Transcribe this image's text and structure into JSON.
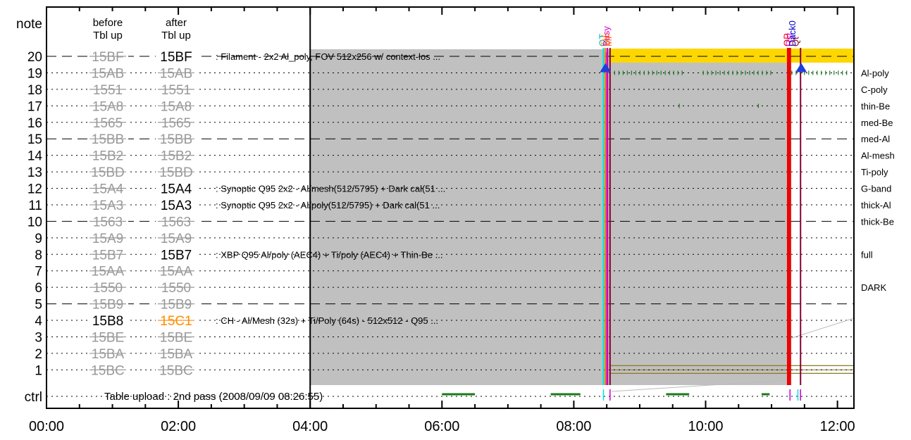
{
  "chart_data": {
    "type": "timeline",
    "header": {
      "note": "note",
      "before": [
        "before",
        "Tbl up"
      ],
      "after": [
        "after",
        "Tbl up"
      ]
    },
    "ctrl_label": "ctrl",
    "ctrl_text": "Table upload : 2nd pass (2008/09/09 08:26:55)",
    "x_ticks": [
      "00:00",
      "02:00",
      "04:00",
      "06:00",
      "08:00",
      "10:00",
      "12:00"
    ],
    "x_range_hours": [
      0,
      12.25
    ],
    "rows": [
      {
        "n": "20",
        "before": "15BF",
        "after": "15BF",
        "after_state": "active",
        "dashed": true,
        "desc": "Filament - 2x2 Al_poly, FOV 512x256 w/ context-los ...",
        "filter": ""
      },
      {
        "n": "19",
        "before": "15AB",
        "after": "15AB",
        "after_state": "gray",
        "dashed": false,
        "desc": "",
        "filter": "Al-poly"
      },
      {
        "n": "18",
        "before": "1551",
        "after": "1551",
        "after_state": "gray",
        "dashed": false,
        "desc": "",
        "filter": "C-poly"
      },
      {
        "n": "17",
        "before": "15A8",
        "after": "15A8",
        "after_state": "gray",
        "dashed": false,
        "desc": "",
        "filter": "thin-Be"
      },
      {
        "n": "16",
        "before": "1565",
        "after": "1565",
        "after_state": "gray",
        "dashed": false,
        "desc": "",
        "filter": "med-Be"
      },
      {
        "n": "15",
        "before": "15BB",
        "after": "15BB",
        "after_state": "gray",
        "dashed": true,
        "desc": "",
        "filter": "med-Al"
      },
      {
        "n": "14",
        "before": "15B2",
        "after": "15B2",
        "after_state": "gray",
        "dashed": false,
        "desc": "",
        "filter": "Al-mesh"
      },
      {
        "n": "13",
        "before": "15BD",
        "after": "15BD",
        "after_state": "gray",
        "dashed": false,
        "desc": "",
        "filter": "Ti-poly"
      },
      {
        "n": "12",
        "before": "15A4",
        "after": "15A4",
        "after_state": "active",
        "dashed": false,
        "desc": "Synoptic Q95 2x2 - Al/mesh(512/5795) + Dark cal(51 ...",
        "filter": "G-band"
      },
      {
        "n": "11",
        "before": "15A3",
        "after": "15A3",
        "after_state": "active",
        "dashed": false,
        "desc": "Synoptic Q95 2x2 - Al/poly(512/5795) + Dark cal(51 ...",
        "filter": "thick-Al"
      },
      {
        "n": "10",
        "before": "1563",
        "after": "1563",
        "after_state": "gray",
        "dashed": true,
        "desc": "",
        "filter": "thick-Be"
      },
      {
        "n": "9",
        "before": "15A9",
        "after": "15A9",
        "after_state": "gray",
        "dashed": false,
        "desc": "",
        "filter": ""
      },
      {
        "n": "8",
        "before": "15B7",
        "after": "15B7",
        "after_state": "active",
        "dashed": false,
        "desc": "XBP Q95 Al/poly (AEC4) + Ti/poly (AEC4) + Thin-Be ...",
        "filter": "full"
      },
      {
        "n": "7",
        "before": "15AA",
        "after": "15AA",
        "after_state": "gray",
        "dashed": false,
        "desc": "",
        "filter": ""
      },
      {
        "n": "6",
        "before": "1550",
        "after": "1550",
        "after_state": "gray",
        "dashed": false,
        "desc": "",
        "filter": "DARK"
      },
      {
        "n": "5",
        "before": "15B9",
        "after": "15B9",
        "after_state": "gray",
        "dashed": true,
        "desc": "",
        "filter": ""
      },
      {
        "n": "4",
        "before": "15B8",
        "after": "15C1",
        "after_state": "changed",
        "before_active": true,
        "dashed": false,
        "desc": "CH - Al/Mesh (32s) + Ti/Poly (64s) - 512x512 - Q95 ...",
        "filter": ""
      },
      {
        "n": "3",
        "before": "15BE",
        "after": "15BE",
        "after_state": "gray",
        "dashed": false,
        "desc": "",
        "filter": ""
      },
      {
        "n": "2",
        "before": "15BA",
        "after": "15BA",
        "after_state": "gray",
        "dashed": false,
        "desc": "",
        "filter": ""
      },
      {
        "n": "1",
        "before": "15BC",
        "after": "15BC",
        "after_state": "gray",
        "dashed": false,
        "desc": "",
        "filter": ""
      }
    ],
    "gray_region_hours": [
      4.0,
      11.3
    ],
    "yellow_bar": {
      "row": "20",
      "start": 8.55,
      "end": 12.25
    },
    "olive_bar": {
      "row": "1",
      "start": 8.55,
      "end": 12.25
    },
    "vertical_lines": [
      {
        "t": 8.45,
        "color": "#00e5e5"
      },
      {
        "t": 8.48,
        "color": "#ff8800"
      },
      {
        "t": 8.51,
        "color": "#cc00cc"
      },
      {
        "t": 8.55,
        "color": "#880033"
      },
      {
        "t": 11.25,
        "color": "#ee0000"
      },
      {
        "t": 11.28,
        "color": "#ee0000"
      },
      {
        "t": 11.44,
        "color": "#880033"
      }
    ],
    "markers_top": [
      {
        "t": 8.43,
        "text": "OT",
        "color": "#00aacc"
      },
      {
        "t": 8.46,
        "text": "TV",
        "color": "#ffaa00"
      },
      {
        "t": 8.49,
        "text": "Busy",
        "color": "#dd00dd"
      },
      {
        "t": 8.52,
        "text": "MP",
        "color": "#ff6600"
      },
      {
        "t": 11.23,
        "text": "OP",
        "color": "#ee0000"
      },
      {
        "t": 11.26,
        "text": "Rst",
        "color": "#dd00dd"
      },
      {
        "t": 11.31,
        "text": "Dack0",
        "color": "#0000cc"
      },
      {
        "t": 11.36,
        "text": "Qt",
        "color": "#880033"
      }
    ],
    "triangles": [
      {
        "t": 8.48,
        "row": "19"
      },
      {
        "t": 11.45,
        "row": "19"
      }
    ],
    "green_ticks_row19": {
      "start": 8.62,
      "end": 12.2,
      "step": 0.064,
      "skip": [
        [
          9.65,
          9.9
        ],
        [
          11.05,
          11.25
        ]
      ]
    },
    "green_ticks_row17": [
      9.6,
      10.8
    ],
    "ctrl_segments": [
      [
        6.0,
        6.5
      ],
      [
        7.65,
        8.1
      ],
      [
        9.4,
        9.75
      ],
      [
        10.85,
        10.97
      ]
    ],
    "ctrl_ticks": [
      {
        "t": 8.45,
        "color": "#00e5e5"
      },
      {
        "t": 8.55,
        "color": "#cc00cc"
      },
      {
        "t": 11.28,
        "color": "#cc00cc"
      },
      {
        "t": 11.4,
        "color": "#00e5e5"
      },
      {
        "t": 11.44,
        "color": "#cc00cc"
      }
    ],
    "colors": {
      "gray": "#c0c0c0",
      "yellow": "#ffd700",
      "olive": "#8b7d2a",
      "green": "#1a7a1a",
      "changed": "#ff8c00",
      "faded": "#999999",
      "triangle": "#1f3fd8"
    }
  }
}
